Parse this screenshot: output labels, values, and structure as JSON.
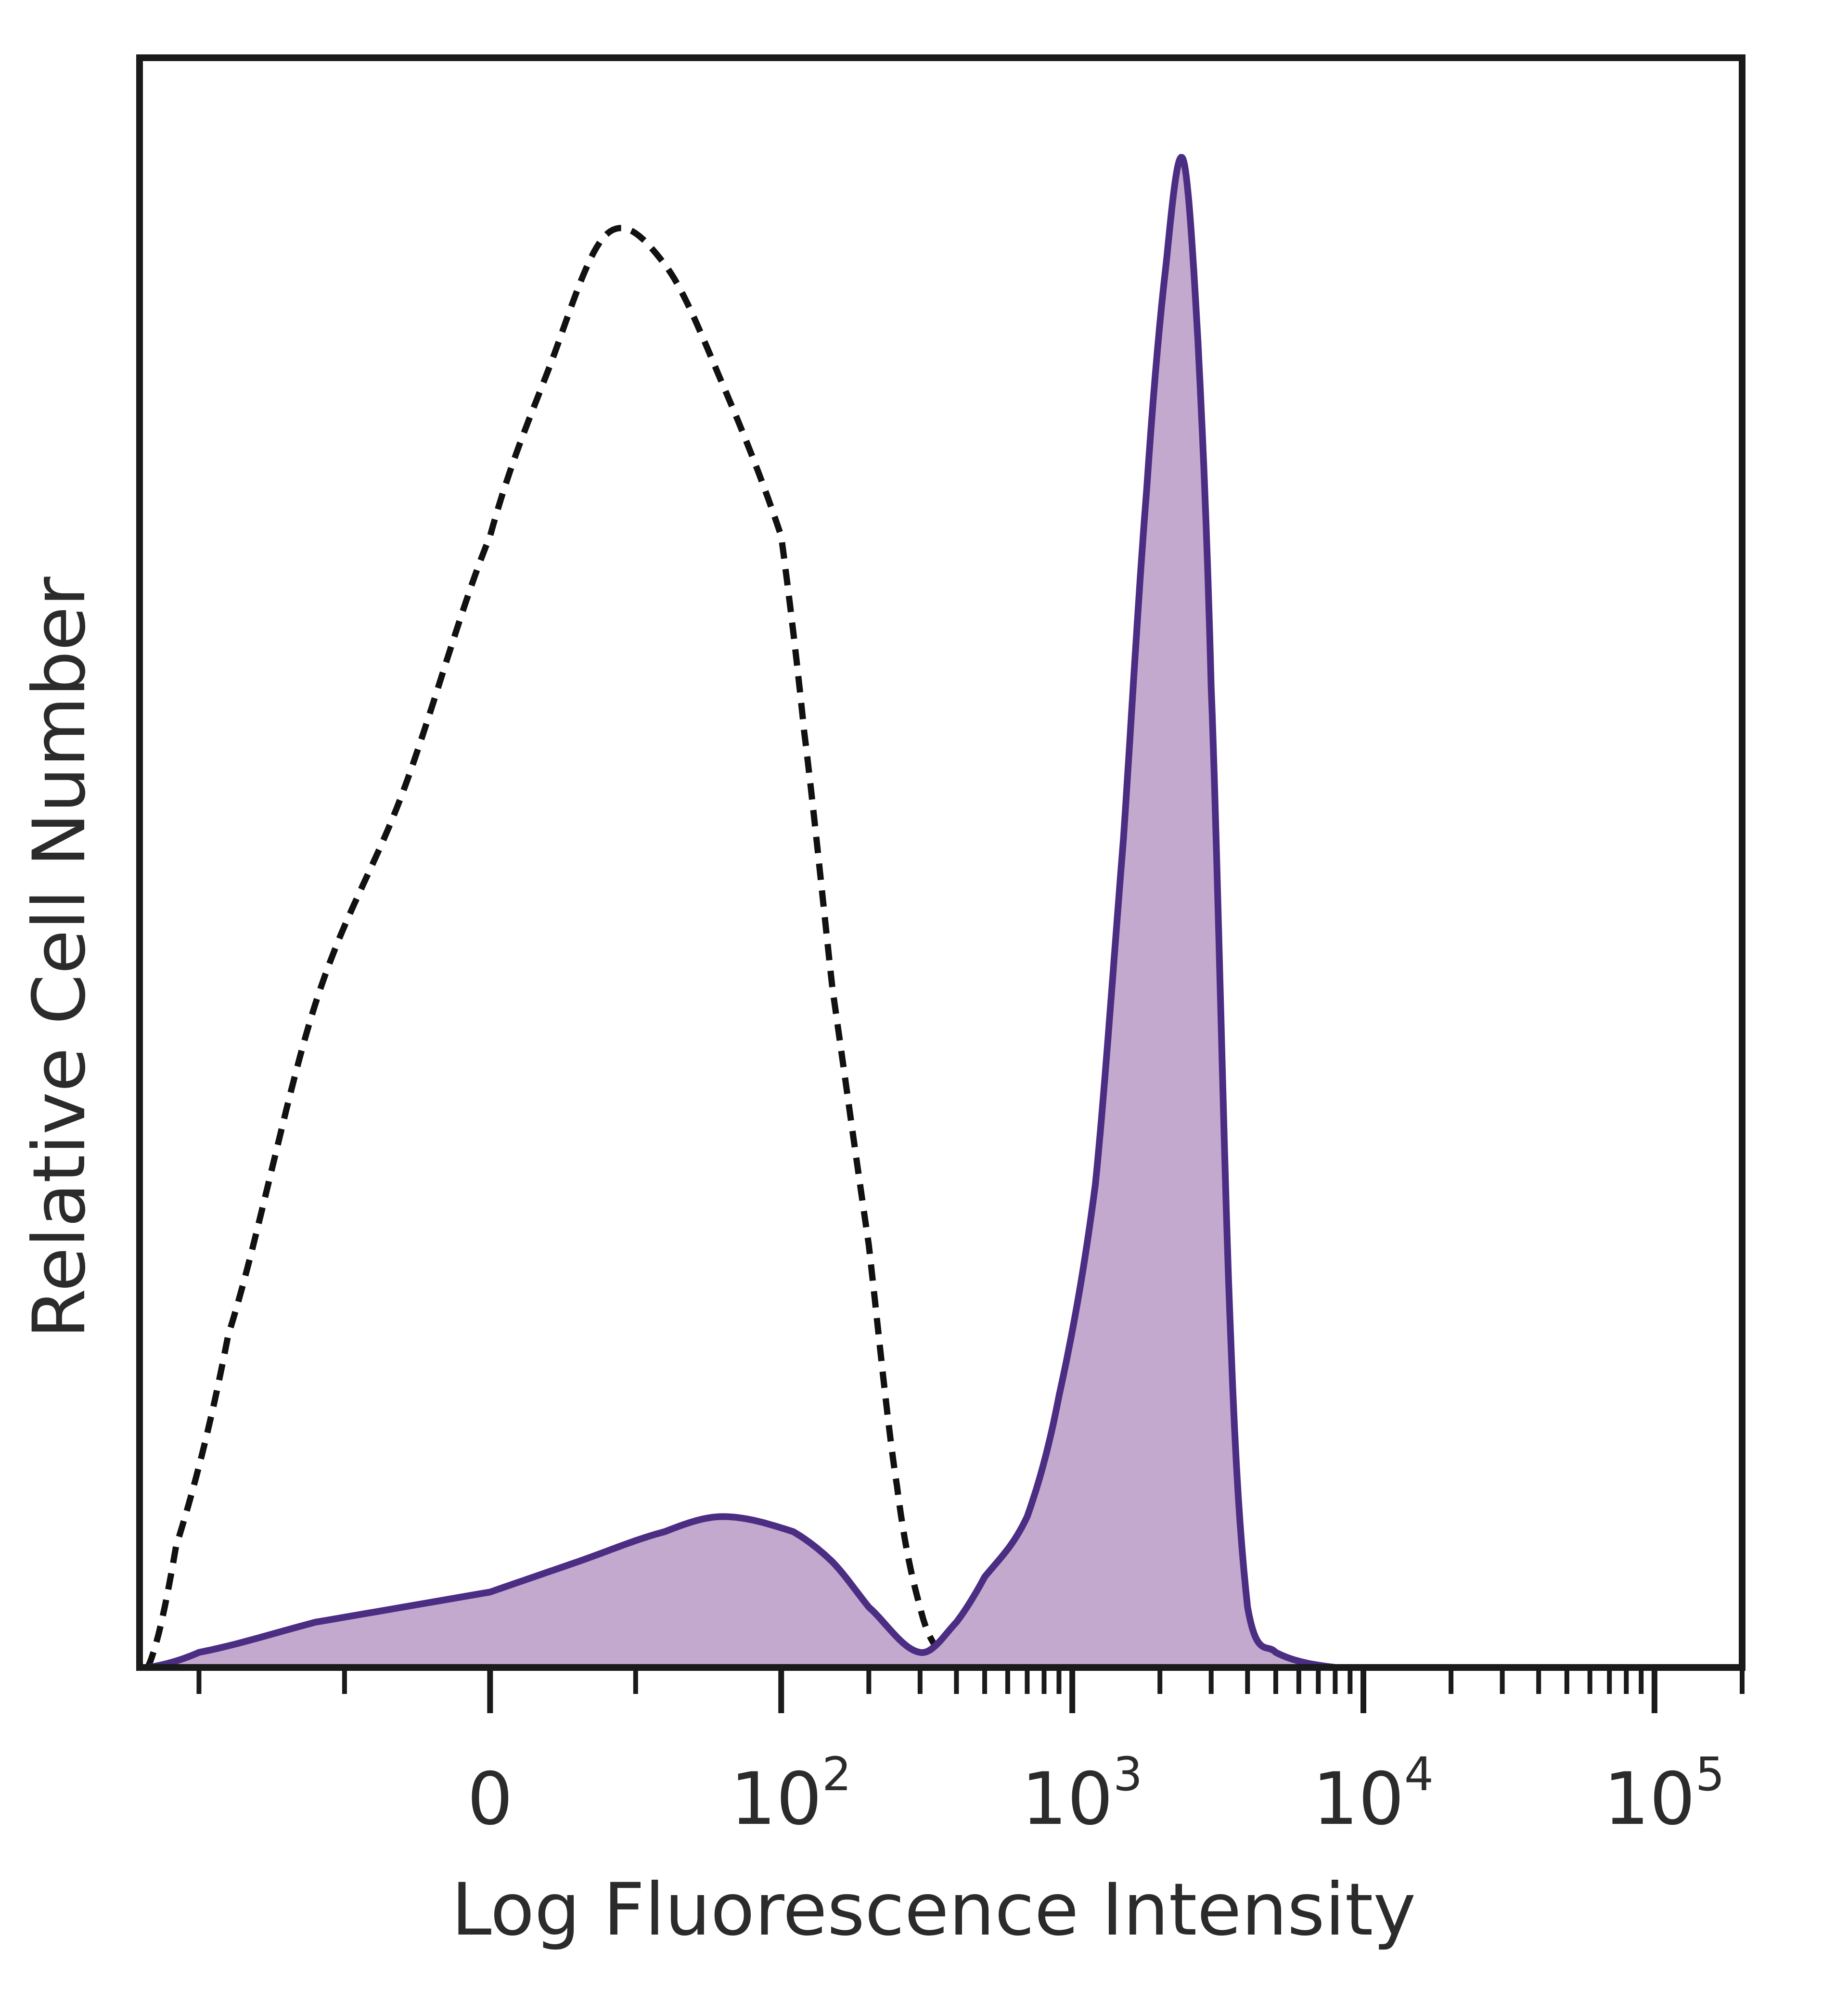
{
  "chart_data": {
    "type": "area",
    "xlabel": "Log Fluorescence Intensity",
    "ylabel": "Relative Cell Number",
    "x_scale": "biexponential",
    "x_tick_labels": [
      {
        "base": "0",
        "exp": ""
      },
      {
        "base": "10",
        "exp": "2"
      },
      {
        "base": "10",
        "exp": "3"
      },
      {
        "base": "10",
        "exp": "4"
      },
      {
        "base": "10",
        "exp": "5"
      }
    ],
    "x_tick_values": [
      0,
      100,
      1000,
      10000,
      100000
    ],
    "ylim": [
      0,
      100
    ],
    "series": [
      {
        "style": "dashed-outline",
        "color": "#111111",
        "x": [
          -150,
          -120,
          -90,
          -60,
          -30,
          0,
          20,
          40,
          60,
          80,
          100,
          120,
          150,
          200,
          250,
          300,
          350,
          400
        ],
        "y": [
          0,
          8,
          22,
          44,
          58,
          75,
          86,
          95,
          93,
          85,
          75,
          62,
          45,
          28,
          12,
          4,
          1,
          0
        ]
      },
      {
        "style": "filled",
        "color": "#4b2e83",
        "fill": "#c3a9cd",
        "x": [
          -150,
          -100,
          -60,
          0,
          30,
          60,
          80,
          110,
          150,
          200,
          300,
          400,
          500,
          700,
          900,
          1200,
          1500,
          1800,
          2100,
          2400,
          2700,
          3000,
          3500,
          4000,
          5000,
          8000,
          20000,
          150000
        ],
        "y": [
          0,
          1,
          3,
          5,
          7,
          9,
          10,
          9,
          7,
          4,
          1,
          3,
          6,
          10,
          18,
          32,
          55,
          78,
          93,
          100,
          88,
          65,
          22,
          4,
          1,
          0,
          0,
          0
        ]
      }
    ]
  }
}
